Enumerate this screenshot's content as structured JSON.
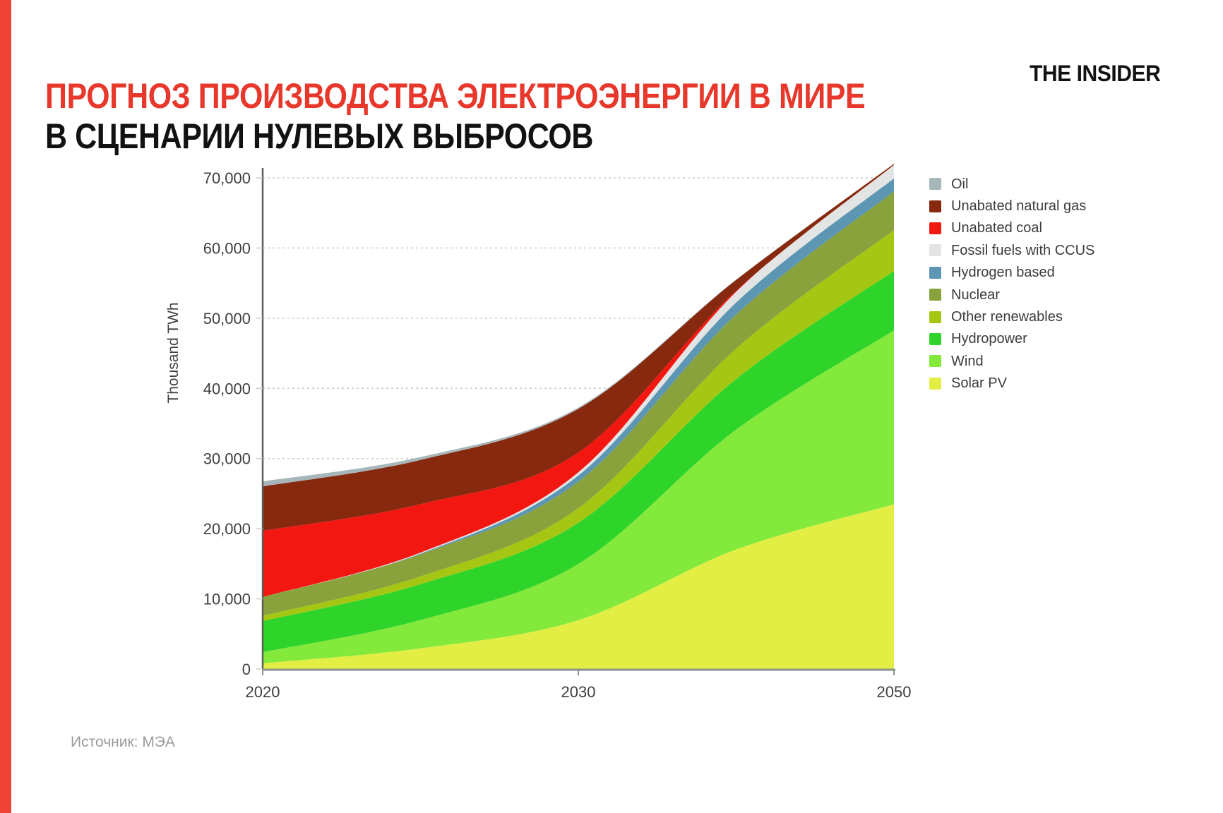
{
  "page": {
    "accent_color": "#ee4237",
    "background": "#ffffff"
  },
  "header": {
    "title_line1": "ПРОГНОЗ ПРОИЗВОДСТВА ЭЛЕКТРОЭНЕРГИИ В МИРЕ",
    "title_line1_color": "#e7382b",
    "title_line2": "В СЦЕНАРИИ НУЛЕВЫХ ВЫБРОСОВ",
    "title_line2_color": "#121212",
    "brand": "THE INSIDER"
  },
  "footer": {
    "source": "Источник: МЭА",
    "color": "#9b9b9b"
  },
  "chart_data": {
    "type": "area",
    "stacked": true,
    "unit": "TWh",
    "ylabel": "Thousand TWh",
    "ylim": [
      0,
      70000
    ],
    "grid": "horizontal dashed",
    "legend_position": "right",
    "x": [
      2020,
      2025,
      2030,
      2040,
      2050
    ],
    "x_note": "points evenly spaced as drawn; only 2020, 2030, 2050 labeled",
    "x_tick_labels": [
      {
        "label": "2020",
        "index": 0
      },
      {
        "label": "2030",
        "index": 2
      },
      {
        "label": "2050",
        "index": 4
      }
    ],
    "y_ticks": [
      {
        "value": 0,
        "label": "0"
      },
      {
        "value": 10000,
        "label": "10,000"
      },
      {
        "value": 20000,
        "label": "20,000"
      },
      {
        "value": 30000,
        "label": "30,000"
      },
      {
        "value": 40000,
        "label": "40,000"
      },
      {
        "value": 50000,
        "label": "50,000"
      },
      {
        "value": 60000,
        "label": "60,000"
      },
      {
        "value": 70000,
        "label": "70,000"
      }
    ],
    "series": [
      {
        "name": "Oil",
        "color": "#a7b6b9",
        "values": [
          720,
          420,
          190,
          50,
          0
        ]
      },
      {
        "name": "Unabated natural gas",
        "color": "#86290e",
        "values": [
          6340,
          6290,
          6220,
          1520,
          160
        ]
      },
      {
        "name": "Unabated coal",
        "color": "#f21811",
        "values": [
          9420,
          6910,
          2810,
          170,
          0
        ]
      },
      {
        "name": "Fossil fuels with CCUS",
        "color": "#e3e5e4",
        "values": [
          0,
          130,
          460,
          1530,
          1910
        ]
      },
      {
        "name": "Hydrogen based",
        "color": "#5c96b3",
        "values": [
          0,
          100,
          880,
          1710,
          1870
        ]
      },
      {
        "name": "Nuclear",
        "color": "#8aa23c",
        "values": [
          2690,
          3160,
          3780,
          4860,
          5500
        ]
      },
      {
        "name": "Other renewables",
        "color": "#a6c614",
        "values": [
          750,
          1100,
          2070,
          4320,
          5840
        ]
      },
      {
        "name": "Hydropower",
        "color": "#2fd42a",
        "values": [
          4420,
          5110,
          5870,
          7220,
          8460
        ]
      },
      {
        "name": "Wind",
        "color": "#83e93b",
        "values": [
          1590,
          4040,
          8010,
          17090,
          24790
        ]
      },
      {
        "name": "Solar PV",
        "color": "#e3ee45",
        "values": [
          820,
          2950,
          6970,
          17030,
          23470
        ]
      }
    ],
    "series_note": "listed in legend order (top of stack first); stacking is bottom-to-top in reverse order",
    "axis_color": "#5a5f5a",
    "x_axis_color": "#8b9289",
    "grid_color": "#c9cdc9",
    "tick_label_color": "#3f3f3f"
  }
}
